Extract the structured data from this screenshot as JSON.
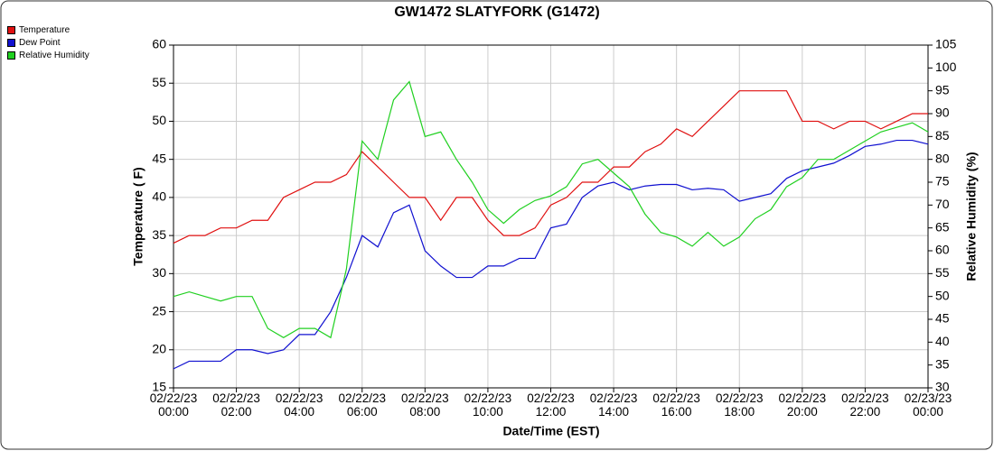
{
  "chart_data": {
    "type": "line",
    "title": "GW1472 SLATYFORK (G1472)",
    "x_label": "Date/Time (EST)",
    "y_label": "Temperature ( F)",
    "y2_label": "Relative Humidity (%)",
    "x": [
      0,
      0.5,
      1,
      1.5,
      2,
      2.5,
      3,
      3.5,
      4,
      4.5,
      5,
      5.5,
      6,
      6.5,
      7,
      7.5,
      8,
      8.5,
      9,
      9.5,
      10,
      10.5,
      11,
      11.5,
      12,
      12.5,
      13,
      13.5,
      14,
      14.5,
      15,
      15.5,
      16,
      16.5,
      17,
      17.5,
      18,
      18.5,
      19,
      19.5,
      20,
      20.5,
      21,
      21.5,
      22,
      22.5,
      23,
      23.5,
      24
    ],
    "series": [
      {
        "name": "Temperature",
        "color": "#e01010",
        "axis": "y",
        "values": [
          34,
          35,
          35,
          36,
          36,
          37,
          37,
          40,
          41,
          42,
          42,
          43,
          46,
          44,
          42,
          40,
          40,
          37,
          40,
          40,
          37,
          35,
          35,
          36,
          39,
          40,
          42,
          42,
          44,
          44,
          46,
          47,
          49,
          48,
          50,
          52,
          54,
          54,
          54,
          54,
          50,
          50,
          49,
          50,
          50,
          49,
          50,
          51,
          51
        ]
      },
      {
        "name": "Dew Point",
        "color": "#1010d0",
        "axis": "y",
        "values": [
          17.5,
          18.5,
          18.5,
          18.5,
          20,
          20,
          19.5,
          20,
          22,
          22,
          25,
          29.5,
          35,
          33.5,
          38,
          39,
          33,
          31,
          29.5,
          29.5,
          31,
          31,
          32,
          32,
          36,
          36.5,
          40,
          41.5,
          42,
          41,
          41.5,
          41.7,
          41.7,
          41,
          41.2,
          41,
          39.5,
          40,
          40.5,
          42.5,
          43.5,
          44,
          44.5,
          45.5,
          46.7,
          47,
          47.5,
          47.5,
          47
        ]
      },
      {
        "name": "Relative Humidity",
        "color": "#20d020",
        "axis": "y2",
        "values": [
          50,
          51,
          50,
          49,
          50,
          50,
          43,
          41,
          43,
          43,
          41,
          56,
          84,
          80,
          93,
          97,
          85,
          86,
          80,
          75,
          69,
          66,
          69,
          71,
          72,
          74,
          79,
          80,
          77,
          74,
          68,
          64,
          63,
          61,
          64,
          61,
          63,
          67,
          69,
          74,
          76,
          80,
          80,
          82,
          84,
          86,
          87,
          88,
          86
        ]
      }
    ],
    "xlim": [
      0,
      24
    ],
    "xticks": [
      {
        "value": 0,
        "label": "02/22/23 00:00"
      },
      {
        "value": 2,
        "label": "02/22/23 02:00"
      },
      {
        "value": 4,
        "label": "02/22/23 04:00"
      },
      {
        "value": 6,
        "label": "02/22/23 06:00"
      },
      {
        "value": 8,
        "label": "02/22/23 08:00"
      },
      {
        "value": 10,
        "label": "02/22/23 10:00"
      },
      {
        "value": 12,
        "label": "02/22/23 12:00"
      },
      {
        "value": 14,
        "label": "02/22/23 14:00"
      },
      {
        "value": 16,
        "label": "02/22/23 16:00"
      },
      {
        "value": 18,
        "label": "02/22/23 18:00"
      },
      {
        "value": 20,
        "label": "02/22/23 20:00"
      },
      {
        "value": 22,
        "label": "02/22/23 22:00"
      },
      {
        "value": 24,
        "label": "02/23/23 00:00"
      }
    ],
    "ylim": [
      15,
      60
    ],
    "yticks": [
      15,
      20,
      25,
      30,
      35,
      40,
      45,
      50,
      55,
      60
    ],
    "y2lim": [
      30,
      105
    ],
    "y2ticks": [
      30,
      35,
      40,
      45,
      50,
      55,
      60,
      65,
      70,
      75,
      80,
      85,
      90,
      95,
      100,
      105
    ],
    "grid": true,
    "legend": "top-left"
  }
}
